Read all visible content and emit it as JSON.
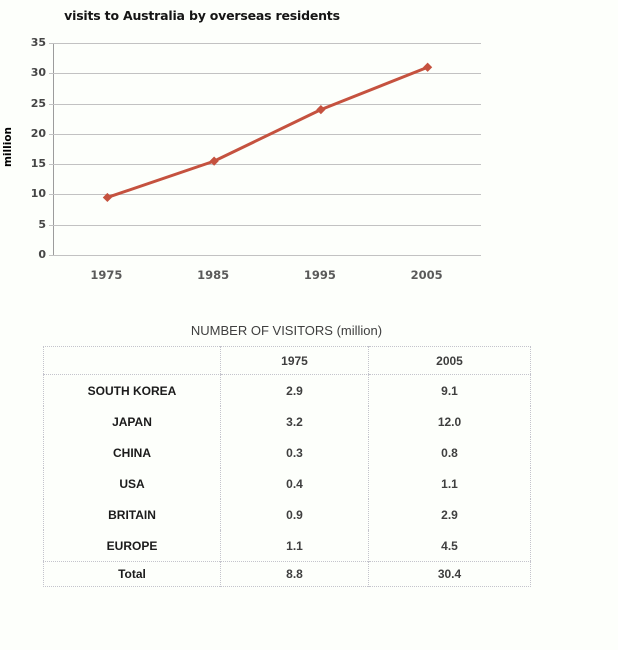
{
  "background_color": "#fdfffb",
  "chart": {
    "title": "visits to Australia by overseas residents",
    "y_axis_label": "million",
    "line_color": "#c5523f",
    "grid_color": "#c2c2c2",
    "axis_color": "#9c9c9c"
  },
  "chart_data": {
    "type": "line",
    "title": "visits to Australia by overseas residents",
    "xlabel": "",
    "ylabel": "million",
    "categories": [
      "1975",
      "1985",
      "1995",
      "2005"
    ],
    "series": [
      {
        "name": "visits to Australia",
        "values": [
          9.5,
          15.5,
          24,
          31
        ]
      }
    ],
    "ylim": [
      0,
      35
    ],
    "yticks": [
      0,
      5,
      10,
      15,
      20,
      25,
      30,
      35
    ],
    "grid": true,
    "legend_position": "none",
    "marker": "diamond"
  },
  "table": {
    "title": "NUMBER OF VISITORS (million)",
    "columns": [
      "",
      "1975",
      "2005"
    ],
    "rows": [
      {
        "label": "SOUTH KOREA",
        "v1975": "2.9",
        "v2005": "9.1"
      },
      {
        "label": "JAPAN",
        "v1975": "3.2",
        "v2005": "12.0"
      },
      {
        "label": "CHINA",
        "v1975": "0.3",
        "v2005": "0.8"
      },
      {
        "label": "USA",
        "v1975": "0.4",
        "v2005": "1.1"
      },
      {
        "label": "BRITAIN",
        "v1975": "0.9",
        "v2005": "2.9"
      },
      {
        "label": "EUROPE",
        "v1975": "1.1",
        "v2005": "4.5"
      }
    ],
    "total_row": {
      "label": "Total",
      "v1975": "8.8",
      "v2005": "30.4"
    }
  }
}
